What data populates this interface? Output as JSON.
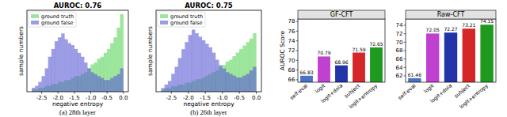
{
  "chart_data": [
    {
      "type": "histogram",
      "title": "AUROC: 0.76",
      "xlabel": "negative entropy",
      "ylabel": "sample numbers",
      "caption": "(a) 28th layer",
      "bins": [
        -2.8,
        -2.7,
        -2.6,
        -2.5,
        -2.4,
        -2.3,
        -2.2,
        -2.1,
        -2.0,
        -1.9,
        -1.8,
        -1.7,
        -1.6,
        -1.5,
        -1.4,
        -1.3,
        -1.2,
        -1.1,
        -1.0,
        -0.9,
        -0.8,
        -0.7,
        -0.6,
        -0.5,
        -0.4,
        -0.3,
        -0.2,
        -0.1,
        0.0
      ],
      "series": [
        {
          "name": "ground truth",
          "color": "#5cd65c",
          "values": [
            1,
            1,
            2,
            2,
            3,
            3,
            4,
            4,
            5,
            5,
            6,
            6,
            7,
            8,
            8,
            9,
            10,
            12,
            14,
            15,
            17,
            18,
            20,
            22,
            25,
            28,
            33,
            40
          ]
        },
        {
          "name": "ground false",
          "color": "#5b5bd6",
          "values": [
            2,
            3,
            5,
            8,
            12,
            18,
            22,
            26,
            28,
            30,
            27,
            25,
            24,
            22,
            20,
            18,
            15,
            12,
            10,
            9,
            8,
            7,
            6,
            6,
            7,
            8,
            9,
            12
          ]
        }
      ],
      "xlim": [
        -2.95,
        0.15
      ],
      "xticks": [
        -2.5,
        {
          "value": -2,
          "label": "-2.0"
        },
        -1.5,
        {
          "value": -1,
          "label": "-1.0"
        },
        -0.5,
        {
          "value": 0,
          "label": "0.0"
        }
      ],
      "ylim": [
        0,
        42
      ],
      "tick_labels": "x",
      "legend": "upper left",
      "grid": false
    },
    {
      "type": "histogram",
      "title": "AUROC: 0.75",
      "xlabel": "negative entropy",
      "ylabel": "sample numbers",
      "caption": "(b) 26th layer",
      "bins": [
        -2.8,
        -2.7,
        -2.6,
        -2.5,
        -2.4,
        -2.3,
        -2.2,
        -2.1,
        -2.0,
        -1.9,
        -1.8,
        -1.7,
        -1.6,
        -1.5,
        -1.4,
        -1.3,
        -1.2,
        -1.1,
        -1.0,
        -0.9,
        -0.8,
        -0.7,
        -0.6,
        -0.5,
        -0.4,
        -0.3,
        -0.2,
        -0.1,
        0.0
      ],
      "series": [
        {
          "name": "ground truth",
          "color": "#5cd65c",
          "values": [
            1,
            2,
            2,
            3,
            3,
            4,
            4,
            5,
            5,
            6,
            7,
            7,
            8,
            9,
            10,
            11,
            12,
            14,
            15,
            17,
            18,
            20,
            22,
            24,
            26,
            28,
            30,
            33
          ]
        },
        {
          "name": "ground false",
          "color": "#5b5bd6",
          "values": [
            2,
            4,
            6,
            10,
            14,
            19,
            24,
            28,
            32,
            35,
            33,
            31,
            29,
            27,
            25,
            22,
            18,
            15,
            13,
            11,
            10,
            9,
            8,
            8,
            9,
            10,
            12,
            14
          ]
        }
      ],
      "xlim": [
        -2.95,
        0.15
      ],
      "xticks": [
        -2.5,
        {
          "value": -2,
          "label": "-2.0"
        },
        -1.5,
        {
          "value": -1,
          "label": "-1.0"
        },
        -0.5,
        {
          "value": 0,
          "label": "0.0"
        }
      ],
      "ylim": [
        0,
        46
      ],
      "tick_labels": "x",
      "legend": "upper left",
      "grid": false
    },
    {
      "type": "bar",
      "title": "GF-CFT",
      "ylabel": "AUROC Score",
      "categories": [
        "self-eval",
        "logit",
        "logit+dola",
        "subject",
        "logit+entropy"
      ],
      "values": [
        66.83,
        70.79,
        68.96,
        71.59,
        72.65
      ],
      "colors": [
        "#4a72c6",
        "#c040d0",
        "#2234a8",
        "#d62728",
        "#1f9a1f"
      ],
      "ylim": [
        65.5,
        78.5
      ],
      "yticks": [
        66,
        68,
        70,
        72,
        74,
        76,
        78
      ],
      "data_labels": true,
      "grid": false
    },
    {
      "type": "bar",
      "title": "Raw-CFT",
      "categories": [
        "self-eval",
        "logit",
        "logit+dola",
        "subject",
        "logit+entropy"
      ],
      "values": [
        61.46,
        72.05,
        72.27,
        73.21,
        74.15
      ],
      "colors": [
        "#4a72c6",
        "#c040d0",
        "#2234a8",
        "#d62728",
        "#1f9a1f"
      ],
      "ylim": [
        60.5,
        75.5
      ],
      "yticks": [
        62,
        64,
        66,
        68,
        70,
        72,
        74
      ],
      "data_labels": true,
      "grid": false
    }
  ]
}
